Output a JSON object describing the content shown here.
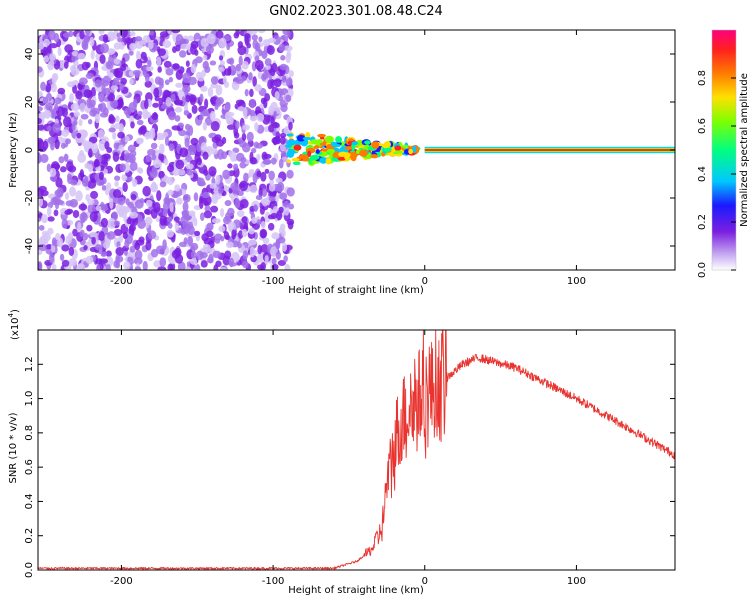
{
  "title": "GN02.2023.301.08.48.C24",
  "chart_data": [
    {
      "type": "heatmap",
      "xlabel": "Height of straight line (km)",
      "ylabel": "Frequency (Hz)",
      "xlim": [
        -255,
        165
      ],
      "ylim": [
        -50,
        50
      ],
      "xticks": [
        -200,
        -100,
        0,
        100
      ],
      "yticks": [
        -40,
        -20,
        0,
        20,
        40
      ],
      "colorbar": {
        "label": "Normalized spectral amplitude",
        "range": [
          0,
          1
        ],
        "ticks": [
          "0.0",
          "0.2",
          "0.4",
          "0.6",
          "0.8"
        ],
        "colormap": [
          "#ffffff",
          "#c2a3f0",
          "#7a1fe0",
          "#1a1aff",
          "#00c8ff",
          "#00ff80",
          "#80ff00",
          "#ffe000",
          "#ff7a00",
          "#ff2020",
          "#ff0080"
        ]
      },
      "features": [
        {
          "name": "noise",
          "x_range": [
            -255,
            -80
          ],
          "freq_range": [
            -50,
            50
          ],
          "amplitude": 0.1
        },
        {
          "name": "transition",
          "x_range": [
            -90,
            -5
          ],
          "freq_center": 0,
          "amplitude_range": [
            0.3,
            0.9
          ]
        },
        {
          "name": "carrier",
          "x_range": [
            0,
            165
          ],
          "freq": 0,
          "amplitude": 1.0
        }
      ]
    },
    {
      "type": "line",
      "xlabel": "Height of straight line (km)",
      "ylabel": "SNR (10 * v/v)",
      "yscale_label": "(x10",
      "yscale_exp": "4",
      "yscale_close": ")",
      "xlim": [
        -255,
        165
      ],
      "ylim": [
        0,
        1.4
      ],
      "xticks": [
        -200,
        -100,
        0,
        100
      ],
      "yticks": [
        "0.0",
        "0.2",
        "0.4",
        "0.6",
        "0.8",
        "1.0",
        "1.2"
      ],
      "color": "#e8332e",
      "key_points": [
        {
          "x": -255,
          "y": 0.01
        },
        {
          "x": -60,
          "y": 0.01
        },
        {
          "x": -45,
          "y": 0.05
        },
        {
          "x": -35,
          "y": 0.12
        },
        {
          "x": -28,
          "y": 0.25
        },
        {
          "x": -25,
          "y": 0.5
        },
        {
          "x": -20,
          "y": 0.7
        },
        {
          "x": -15,
          "y": 0.9
        },
        {
          "x": -5,
          "y": 1.0
        },
        {
          "x": 5,
          "y": 1.05
        },
        {
          "x": 12,
          "y": 1.1
        },
        {
          "x": 25,
          "y": 1.2
        },
        {
          "x": 35,
          "y": 1.24
        },
        {
          "x": 60,
          "y": 1.18
        },
        {
          "x": 100,
          "y": 1.0
        },
        {
          "x": 130,
          "y": 0.85
        },
        {
          "x": 165,
          "y": 0.67
        }
      ]
    }
  ]
}
